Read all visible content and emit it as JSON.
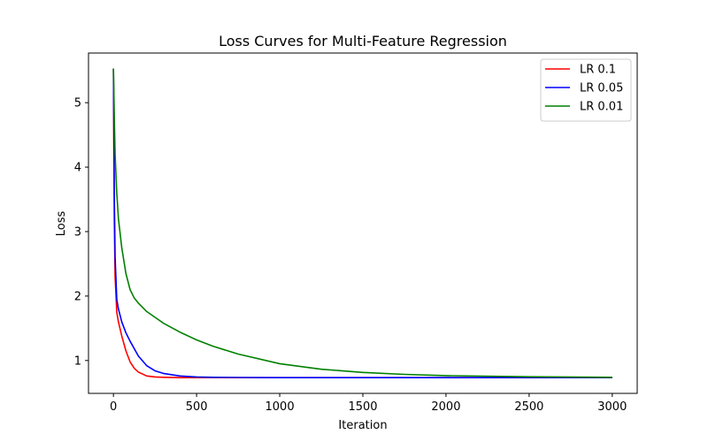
{
  "chart_data": {
    "type": "line",
    "title": "Loss Curves for Multi-Feature Regression",
    "xlabel": "Iteration",
    "ylabel": "Loss",
    "xlim": [
      -150,
      3150
    ],
    "ylim": [
      0.49,
      5.77
    ],
    "xticks": [
      0,
      500,
      1000,
      1500,
      2000,
      2500,
      3000
    ],
    "yticks": [
      1,
      2,
      3,
      4,
      5
    ],
    "grid": false,
    "legend_position": "top-right",
    "series": [
      {
        "name": "LR 0.1",
        "color": "#ff0000",
        "x": [
          0,
          5,
          10,
          20,
          30,
          50,
          75,
          100,
          125,
          150,
          200,
          250,
          300,
          400,
          500,
          750,
          1000,
          2000,
          3000
        ],
        "y": [
          5.53,
          3.2,
          2.3,
          1.75,
          1.6,
          1.38,
          1.15,
          0.98,
          0.88,
          0.82,
          0.76,
          0.745,
          0.74,
          0.735,
          0.735,
          0.735,
          0.735,
          0.735,
          0.735
        ]
      },
      {
        "name": "LR 0.05",
        "color": "#0000ff",
        "x": [
          0,
          5,
          10,
          20,
          30,
          50,
          75,
          100,
          150,
          200,
          250,
          300,
          400,
          500,
          600,
          750,
          1000,
          1500,
          2000,
          3000
        ],
        "y": [
          5.53,
          3.6,
          2.6,
          1.95,
          1.8,
          1.6,
          1.43,
          1.3,
          1.07,
          0.92,
          0.84,
          0.8,
          0.76,
          0.745,
          0.74,
          0.737,
          0.735,
          0.735,
          0.735,
          0.735
        ]
      },
      {
        "name": "LR 0.01",
        "color": "#008000",
        "x": [
          0,
          5,
          10,
          20,
          30,
          50,
          75,
          100,
          125,
          150,
          200,
          300,
          400,
          500,
          600,
          750,
          1000,
          1250,
          1500,
          1750,
          2000,
          2500,
          3000
        ],
        "y": [
          5.53,
          4.8,
          4.2,
          3.6,
          3.2,
          2.75,
          2.35,
          2.1,
          1.97,
          1.89,
          1.76,
          1.58,
          1.44,
          1.32,
          1.22,
          1.1,
          0.95,
          0.865,
          0.815,
          0.785,
          0.765,
          0.748,
          0.74
        ]
      }
    ]
  }
}
